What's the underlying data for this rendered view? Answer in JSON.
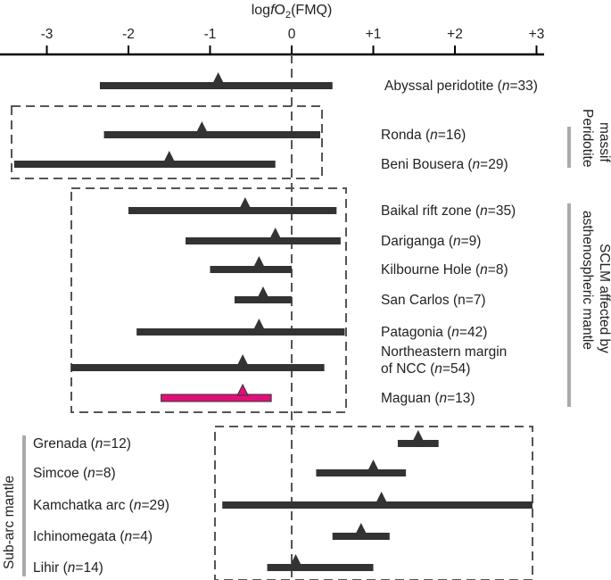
{
  "chart_data": {
    "type": "range",
    "title": "logfO₂(FMQ)",
    "title_parts": {
      "prefix": "log",
      "italic": "f",
      "base": "O",
      "sub": "2",
      "suffix": "(FMQ)"
    },
    "xlim": [
      -3.5,
      3.1
    ],
    "ticks": [
      {
        "v": -3,
        "label": "-3"
      },
      {
        "v": -2,
        "label": "-2"
      },
      {
        "v": -1,
        "label": "-1"
      },
      {
        "v": 0,
        "label": "0"
      },
      {
        "v": 1,
        "label": "+1"
      },
      {
        "v": 2,
        "label": "+2"
      },
      {
        "v": 3,
        "label": "+3"
      }
    ],
    "colors": {
      "bar": "#333333",
      "highlight": "#e0107a",
      "box": "#555555",
      "group_bar": "#aaaaaa"
    },
    "series": [
      {
        "name": "Abyssal peridotite",
        "pre": "Abyssal peridotite (",
        "n_sym": "n",
        "post": "=33)",
        "min": -2.35,
        "max": 0.5,
        "mean": -0.9
      },
      {
        "name": "Ronda",
        "pre": "Ronda (",
        "n_sym": "n",
        "post": "=16)",
        "min": -2.3,
        "max": 0.35,
        "mean": -1.1
      },
      {
        "name": "Beni Bousera",
        "pre": "Beni Bousera (",
        "n_sym": "n",
        "post": "=29)",
        "min": -3.4,
        "max": -0.2,
        "mean": -1.5
      },
      {
        "name": "Baikal rift zone",
        "pre": "Baikal rift zone (",
        "n_sym": "n",
        "post": "=35)",
        "min": -2.0,
        "max": 0.55,
        "mean": -0.57
      },
      {
        "name": "Dariganga",
        "pre": "Dariganga (",
        "n_sym": "n",
        "post": "=9)",
        "min": -1.3,
        "max": 0.6,
        "mean": -0.2
      },
      {
        "name": "Kilbourne Hole",
        "pre": "Kilbourne Hole (",
        "n_sym": "n",
        "post": "=8)",
        "min": -1.0,
        "max": 0.0,
        "mean": -0.4
      },
      {
        "name": "San Carlos",
        "pre": "San Carlos (n=7)",
        "n_sym": "",
        "post": "",
        "min": -0.7,
        "max": 0.0,
        "mean": -0.35
      },
      {
        "name": "Patagonia",
        "pre": "Patagonia (",
        "n_sym": "n",
        "post": "=42)",
        "min": -1.9,
        "max": 0.65,
        "mean": -0.4
      },
      {
        "name": "Northeastern margin of NCC",
        "pre": "Northeastern margin",
        "line2_pre": "of NCC (",
        "n_sym": "n",
        "post": "=54)",
        "min": -2.7,
        "max": 0.4,
        "mean": -0.6
      },
      {
        "name": "Maguan",
        "pre": "Maguan (",
        "n_sym": "n",
        "post": "=13)",
        "min": -1.6,
        "max": -0.25,
        "mean": -0.6,
        "highlight": true
      },
      {
        "name": "Grenada",
        "pre": "Grenada (",
        "n_sym": "n",
        "post": "=12)",
        "min": 1.3,
        "max": 1.8,
        "mean": 1.55
      },
      {
        "name": "Simcoe",
        "pre": "Simcoe (",
        "n_sym": "n",
        "post": "=8)",
        "min": 0.3,
        "max": 1.4,
        "mean": 1.0
      },
      {
        "name": "Kamchatka arc",
        "pre": "Kamchatka arc (",
        "n_sym": "n",
        "post": "=29)",
        "min": -0.85,
        "max": 2.95,
        "mean": 1.1
      },
      {
        "name": "Ichinomegata",
        "pre": "Ichinomegata (",
        "n_sym": "n",
        "post": "=4)",
        "min": 0.5,
        "max": 1.2,
        "mean": 0.85
      },
      {
        "name": "Lihir",
        "pre": "Lihir (",
        "n_sym": "n",
        "post": "=14)",
        "min": -0.3,
        "max": 1.0,
        "mean": 0.05
      }
    ],
    "groups": [
      {
        "label": "Peridotite massif",
        "line1": "Peridotite",
        "line2": "massif"
      },
      {
        "label": "SCLM affected by asthenospheric mantle",
        "line1": "SCLM affected by",
        "line2": "asthenospheric mantle"
      },
      {
        "label": "Sub-arc mantle",
        "line1": "Sub-arc mantle",
        "line2": ""
      }
    ]
  }
}
